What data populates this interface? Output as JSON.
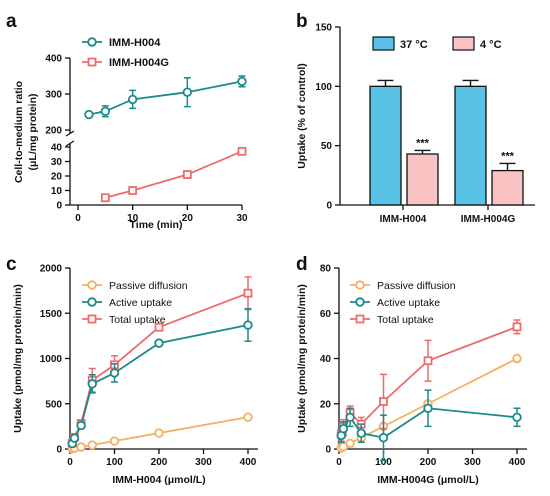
{
  "chart_data": [
    {
      "panel": "a",
      "type": "line",
      "xlabel": "Time (min)",
      "ylabel": "Cell-to-medium ratio (μL/mg protein)",
      "xlim": [
        0,
        30
      ],
      "xticks": [
        "0",
        "10",
        "20",
        "30"
      ],
      "y_upper": {
        "ylim": [
          200,
          400
        ],
        "yticks": [
          "200",
          "300",
          "400"
        ]
      },
      "y_lower": {
        "ylim": [
          0,
          40
        ],
        "yticks": [
          "0",
          "10",
          "20",
          "30",
          "40"
        ]
      },
      "legend_position": "top-left",
      "series": [
        {
          "name": "IMM-H004",
          "marker": "circle",
          "color": "#1a8a8a",
          "x": [
            2,
            5,
            10,
            20,
            30
          ],
          "y": [
            243,
            252,
            285,
            305,
            335
          ],
          "err": [
            5,
            15,
            25,
            40,
            15
          ]
        },
        {
          "name": "IMM-H004G",
          "marker": "square",
          "color": "#ee6b6b",
          "x": [
            5,
            10,
            20,
            30
          ],
          "y": [
            5,
            10,
            21,
            37
          ],
          "err": [
            0.5,
            0.5,
            1.5,
            1.5
          ]
        }
      ]
    },
    {
      "panel": "b",
      "type": "bar",
      "ylabel": "Uptake (% of control)",
      "ylim": [
        0,
        150
      ],
      "yticks": [
        "0",
        "50",
        "100",
        "150"
      ],
      "categories": [
        "IMM-H004",
        "IMM-H004G"
      ],
      "legend_position": "top",
      "series": [
        {
          "name": "37 °C",
          "color": "#5bc2e7",
          "values": [
            100,
            100
          ],
          "err": [
            5,
            5
          ]
        },
        {
          "name": "4 °C",
          "color": "#f9c3c3",
          "values": [
            43,
            29
          ],
          "err": [
            3,
            6
          ]
        }
      ],
      "annotations": [
        "***",
        "***"
      ]
    },
    {
      "panel": "c",
      "type": "line",
      "xlabel": "IMM-H004 (μmol/L)",
      "ylabel": "Uptake (pmol/mg protein/min)",
      "xlim": [
        0,
        400
      ],
      "ylim": [
        0,
        2000
      ],
      "xticks": [
        "0",
        "100",
        "200",
        "300",
        "400"
      ],
      "yticks": [
        "0",
        "500",
        "1000",
        "1500",
        "2000"
      ],
      "legend_position": "top-left",
      "series": [
        {
          "name": "Passive diffusion",
          "marker": "circle",
          "color": "#f5b065",
          "x": [
            5,
            10,
            25,
            50,
            100,
            200,
            400
          ],
          "y": [
            4,
            9,
            22,
            44,
            88,
            176,
            352
          ],
          "err": [
            0,
            0,
            0,
            0,
            0,
            0,
            0
          ]
        },
        {
          "name": "Active uptake",
          "marker": "circle",
          "color": "#1a8a8a",
          "x": [
            5,
            10,
            25,
            50,
            100,
            200,
            400
          ],
          "y": [
            60,
            120,
            260,
            720,
            840,
            1170,
            1370
          ],
          "err": [
            15,
            20,
            30,
            100,
            100,
            20,
            180
          ]
        },
        {
          "name": "Total uptake",
          "marker": "square",
          "color": "#ee6b6b",
          "x": [
            5,
            10,
            25,
            50,
            100,
            200,
            400
          ],
          "y": [
            64,
            129,
            282,
            760,
            930,
            1346,
            1722
          ],
          "err": [
            15,
            20,
            30,
            130,
            100,
            25,
            180
          ]
        }
      ]
    },
    {
      "panel": "d",
      "type": "line",
      "xlabel": "IMM-H004G (μmol/L)",
      "ylabel": "Uptake (pmol/mg protein/min)",
      "xlim": [
        0,
        400
      ],
      "ylim": [
        0,
        80
      ],
      "xticks": [
        "0",
        "100",
        "200",
        "300",
        "400"
      ],
      "yticks": [
        "0",
        "20",
        "40",
        "60",
        "80"
      ],
      "legend_position": "top-left",
      "series": [
        {
          "name": "Passive diffusion",
          "marker": "circle",
          "color": "#f5b065",
          "x": [
            5,
            10,
            25,
            50,
            100,
            200,
            400
          ],
          "y": [
            0.5,
            1,
            2.5,
            5,
            10,
            20,
            40
          ],
          "err": [
            0,
            0,
            0,
            0,
            0,
            0,
            0
          ]
        },
        {
          "name": "Active uptake",
          "marker": "circle",
          "color": "#1a8a8a",
          "x": [
            5,
            10,
            25,
            50,
            100,
            200,
            400
          ],
          "y": [
            6,
            9,
            14,
            7,
            5,
            18,
            14
          ],
          "err": [
            3,
            3,
            4,
            4,
            10,
            8,
            4
          ]
        },
        {
          "name": "Total uptake",
          "marker": "square",
          "color": "#ee6b6b",
          "x": [
            5,
            10,
            25,
            50,
            100,
            200,
            400
          ],
          "y": [
            6.5,
            10,
            16,
            11,
            21,
            39,
            54
          ],
          "err": [
            3,
            3,
            3,
            3,
            12,
            9,
            3
          ]
        }
      ]
    }
  ]
}
